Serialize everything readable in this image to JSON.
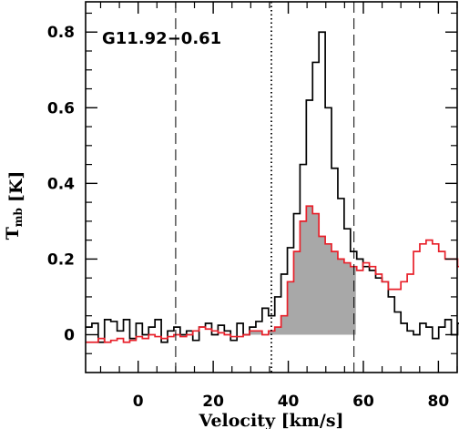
{
  "chart_data": {
    "type": "line",
    "annotation": "G11.92−0.61",
    "xlabel": "Velocity [km/s]",
    "ylabel_main": "T",
    "ylabel_sub": "mb",
    "ylabel_unit": "[K]",
    "xlim": [
      -14,
      85
    ],
    "ylim": [
      -0.1,
      0.88
    ],
    "xticks": [
      0,
      20,
      40,
      60,
      80
    ],
    "yticks": [
      0,
      0.2,
      0.4,
      0.6,
      0.8
    ],
    "xtick_labels": [
      "0",
      "20",
      "40",
      "60",
      "80"
    ],
    "ytick_labels": [
      "0",
      "0.2",
      "0.4",
      "0.6",
      "0.8"
    ],
    "colors": {
      "black_series": "#000000",
      "red_series": "#e8202a",
      "fill": "#a8a8a8",
      "axes": "#000000"
    },
    "vlines": [
      {
        "x": 10,
        "style": "dashed"
      },
      {
        "x": 35.5,
        "style": "dotted"
      },
      {
        "x": 57.5,
        "style": "dashed"
      }
    ],
    "fill_range": [
      25,
      58
    ],
    "series": [
      {
        "style": "step",
        "color": "black",
        "x_start": -14,
        "bin": 1.68,
        "values": [
          0.02,
          0.03,
          -0.02,
          0.04,
          0.035,
          0.01,
          0.04,
          -0.01,
          0.03,
          0.0,
          0.02,
          0.04,
          -0.02,
          0.01,
          0.02,
          0.0,
          0.01,
          -0.015,
          0.02,
          0.03,
          0.0,
          0.025,
          0.01,
          -0.015,
          0.03,
          0.0,
          0.02,
          0.035,
          0.07,
          0.05,
          0.1,
          0.16,
          0.23,
          0.32,
          0.45,
          0.62,
          0.72,
          0.8,
          0.6,
          0.44,
          0.36,
          0.28,
          0.22,
          0.2,
          0.18,
          0.17,
          0.15,
          0.14,
          0.1,
          0.06,
          0.03,
          0.01,
          0.0,
          0.03,
          0.02,
          -0.01,
          0.02,
          0.04,
          0.0,
          0.03,
          0.02,
          0.01,
          0.0,
          0.05,
          0.02,
          0.0,
          0.02,
          0.03,
          0.06
        ]
      },
      {
        "style": "step",
        "color": "red",
        "x_start": -14,
        "bin": 1.68,
        "values": [
          -0.02,
          -0.02,
          -0.01,
          -0.02,
          -0.015,
          -0.01,
          -0.02,
          -0.015,
          -0.005,
          -0.01,
          0.0,
          -0.005,
          -0.01,
          -0.005,
          0.0,
          -0.005,
          0.0,
          0.01,
          0.02,
          0.015,
          0.01,
          0.005,
          0.0,
          -0.005,
          -0.005,
          0.0,
          0.01,
          0.01,
          0.0,
          0.01,
          0.02,
          0.05,
          0.14,
          0.22,
          0.3,
          0.34,
          0.32,
          0.26,
          0.24,
          0.22,
          0.2,
          0.19,
          0.18,
          0.17,
          0.19,
          0.18,
          0.16,
          0.14,
          0.12,
          0.12,
          0.14,
          0.16,
          0.22,
          0.24,
          0.25,
          0.24,
          0.22,
          0.2,
          0.2,
          0.18,
          0.17,
          0.16,
          0.18,
          0.16,
          0.12,
          0.1,
          0.09,
          0.08,
          0.07
        ]
      }
    ]
  }
}
